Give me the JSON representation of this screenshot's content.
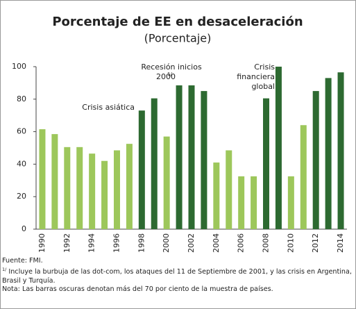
{
  "chart_data": {
    "type": "bar",
    "title": "Porcentaje de EE en desaceleración",
    "subtitle": "(Porcentaje)",
    "categories": [
      "1990",
      null,
      "1992",
      null,
      "1994",
      null,
      "1996",
      null,
      "1998",
      null,
      "2000",
      null,
      "2002",
      null,
      "2004",
      null,
      "2006",
      null,
      "2008",
      null,
      "2010",
      null,
      "2012",
      null,
      "2014"
    ],
    "values": [
      61.5,
      58.5,
      50.5,
      50.5,
      46.5,
      42,
      48.5,
      52.5,
      73,
      80.5,
      57,
      88.5,
      88.5,
      85,
      41,
      48.5,
      32.5,
      32.5,
      80.5,
      100,
      32.5,
      64,
      85,
      93,
      96.5
    ],
    "colors": [
      "#9dc75b",
      "#9dc75b",
      "#9dc75b",
      "#9dc75b",
      "#9dc75b",
      "#9dc75b",
      "#9dc75b",
      "#9dc75b",
      "#2d6a31",
      "#2d6a31",
      "#9dc75b",
      "#2d6a31",
      "#2d6a31",
      "#2d6a31",
      "#9dc75b",
      "#9dc75b",
      "#9dc75b",
      "#9dc75b",
      "#2d6a31",
      "#2d6a31",
      "#9dc75b",
      "#9dc75b",
      "#2d6a31",
      "#2d6a31",
      "#2d6a31"
    ],
    "ylim": [
      0,
      100
    ],
    "yticks": [
      0,
      20,
      40,
      60,
      80,
      100
    ],
    "grid": false,
    "annotations": [
      {
        "lines": [
          "Crisis asiática"
        ]
      },
      {
        "lines": [
          "Recesión inicios",
          "2000"
        ],
        "sup": "1/"
      },
      {
        "lines": [
          "Crisis",
          "financiera",
          "global"
        ]
      }
    ],
    "notes": {
      "source": "Fuente: FMI.",
      "footnote_mark": "1/",
      "footnote": "Incluye la burbuja de las dot-com, los ataques del 11 de Septiembre de 2001, y las crisis en Argentina, Brasil y Turquía.",
      "note": "Nota: Las barras oscuras denotan más del 70 por ciento de la muestra de países."
    }
  }
}
